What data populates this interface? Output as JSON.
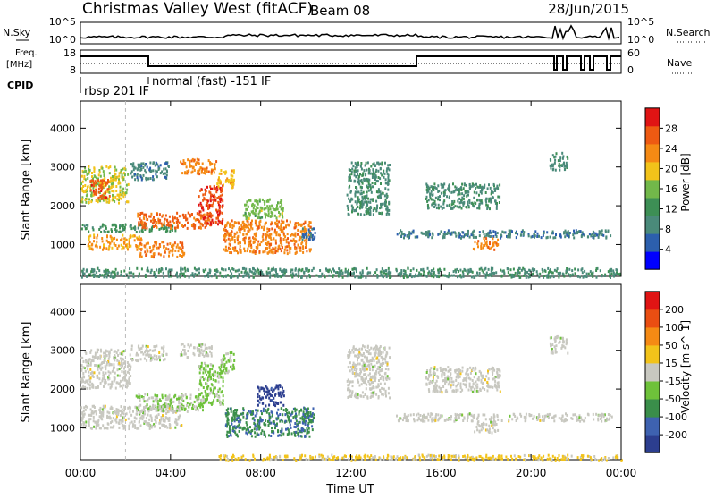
{
  "header": {
    "station": "Christmas Valley West (fitACF)",
    "beam": "Beam 08",
    "date": "28/Jun/2015"
  },
  "top_panels": {
    "nsky_label": "N.Sky",
    "nsky_left_ticks": [
      "10^5",
      "10^0"
    ],
    "nsky_right_ticks": [
      "10^5",
      "10^0"
    ],
    "nsearch_label": "N.Search",
    "freq_label_line1": "Freq.",
    "freq_label_line2": "[MHz]",
    "freq_left_ticks": [
      "18",
      "8"
    ],
    "freq_right_ticks": [
      "60",
      "0"
    ],
    "nave_label": "Nave",
    "cpid_label": "CPID",
    "cpid_annotation_1": "normal (fast) -151 IF",
    "cpid_annotation_2": "rbsp 201 IF"
  },
  "colors": {
    "power": [
      "#0000ff",
      "#2c5fad",
      "#4a8a7a",
      "#3d8f55",
      "#72b84a",
      "#f2c31a",
      "#f58a14",
      "#ee5a12",
      "#e01414"
    ],
    "velocity": [
      "#2c3e8f",
      "#3e62b0",
      "#3a8e4a",
      "#6ec23a",
      "#c8c8c0",
      "#f2c31a",
      "#f58a14",
      "#ea4e12",
      "#e01414"
    ]
  },
  "chart_data": [
    {
      "type": "heatmap",
      "title": "",
      "ylabel": "Slant Range [km]",
      "xlabel": "Time UT",
      "x_ticks": [
        "00:00",
        "04:00",
        "08:00",
        "12:00",
        "16:00",
        "20:00",
        "00:00"
      ],
      "x_range_hours": [
        0,
        24
      ],
      "y_ticks": [
        "1000",
        "2000",
        "3000",
        "4000"
      ],
      "y_range_km": [
        180,
        4700
      ],
      "colorbar_label": "Power [dB]",
      "colorbar_ticks": [
        "4",
        "8",
        "12",
        "16",
        "20",
        "24",
        "28"
      ],
      "colorbar_range": [
        0,
        32
      ],
      "regions": [
        {
          "t0": 0.0,
          "t1": 2.1,
          "r0": 2100,
          "r1": 3050,
          "value": 18
        },
        {
          "t0": 0.4,
          "t1": 1.3,
          "r0": 2200,
          "r1": 2700,
          "value": 27
        },
        {
          "t0": 0.0,
          "t1": 4.2,
          "r0": 1350,
          "r1": 1550,
          "value": 12
        },
        {
          "t0": 0.3,
          "t1": 2.7,
          "r0": 900,
          "r1": 1280,
          "value": 22
        },
        {
          "t0": 2.6,
          "t1": 4.6,
          "r0": 700,
          "r1": 1100,
          "value": 24
        },
        {
          "t0": 2.5,
          "t1": 5.8,
          "r0": 1450,
          "r1": 1850,
          "value": 26
        },
        {
          "t0": 5.2,
          "t1": 6.3,
          "r0": 1550,
          "r1": 2550,
          "value": 28
        },
        {
          "t0": 6.0,
          "t1": 6.8,
          "r0": 2500,
          "r1": 2950,
          "value": 20
        },
        {
          "t0": 2.2,
          "t1": 3.9,
          "r0": 2700,
          "r1": 3150,
          "value": 8
        },
        {
          "t0": 4.4,
          "t1": 6.0,
          "r0": 2850,
          "r1": 3250,
          "value": 24
        },
        {
          "t0": 6.3,
          "t1": 10.2,
          "r0": 800,
          "r1": 1650,
          "value": 24
        },
        {
          "t0": 7.2,
          "t1": 9.0,
          "r0": 1700,
          "r1": 2200,
          "value": 16
        },
        {
          "t0": 9.8,
          "t1": 10.4,
          "r0": 1150,
          "r1": 1450,
          "value": 6
        },
        {
          "t0": 11.8,
          "t1": 13.7,
          "r0": 1800,
          "r1": 3150,
          "value": 10
        },
        {
          "t0": 15.3,
          "t1": 18.6,
          "r0": 1950,
          "r1": 2600,
          "value": 10
        },
        {
          "t0": 14.0,
          "t1": 23.6,
          "r0": 1200,
          "r1": 1400,
          "value": 8
        },
        {
          "t0": 17.4,
          "t1": 18.5,
          "r0": 900,
          "r1": 1200,
          "value": 24
        },
        {
          "t0": 20.8,
          "t1": 21.6,
          "r0": 2950,
          "r1": 3400,
          "value": 10
        },
        {
          "t0": 0.0,
          "t1": 24.0,
          "r0": 180,
          "r1": 420,
          "value": 10
        }
      ]
    },
    {
      "type": "heatmap",
      "title": "",
      "ylabel": "Slant Range [km]",
      "xlabel": "Time UT",
      "x_ticks": [
        "00:00",
        "04:00",
        "08:00",
        "12:00",
        "16:00",
        "20:00",
        "00:00"
      ],
      "x_range_hours": [
        0,
        24
      ],
      "y_ticks": [
        "1000",
        "2000",
        "3000",
        "4000"
      ],
      "y_range_km": [
        180,
        4700
      ],
      "colorbar_label": "Velocity [m s^-1]",
      "colorbar_ticks": [
        "-200",
        "-100",
        "-50",
        "-15",
        "15",
        "50",
        "100",
        "200"
      ],
      "colorbar_range": [
        -250,
        250
      ],
      "regions": [
        {
          "t0": 0.0,
          "t1": 2.2,
          "r0": 2050,
          "r1": 3050,
          "value": 0
        },
        {
          "t0": 0.0,
          "t1": 4.5,
          "r0": 1000,
          "r1": 1600,
          "value": 0
        },
        {
          "t0": 2.4,
          "t1": 5.6,
          "r0": 1450,
          "r1": 1900,
          "value": -30
        },
        {
          "t0": 5.2,
          "t1": 6.3,
          "r0": 1600,
          "r1": 2700,
          "value": -40
        },
        {
          "t0": 6.2,
          "t1": 6.8,
          "r0": 2450,
          "r1": 3000,
          "value": -40
        },
        {
          "t0": 2.2,
          "t1": 3.8,
          "r0": 2750,
          "r1": 3150,
          "value": 0
        },
        {
          "t0": 4.4,
          "t1": 5.8,
          "r0": 2850,
          "r1": 3200,
          "value": 0
        },
        {
          "t0": 6.4,
          "t1": 10.3,
          "r0": 800,
          "r1": 1550,
          "value": -130
        },
        {
          "t0": 7.8,
          "t1": 9.0,
          "r0": 1600,
          "r1": 2150,
          "value": -220
        },
        {
          "t0": 9.8,
          "t1": 10.4,
          "r0": 1150,
          "r1": 1400,
          "value": -120
        },
        {
          "t0": 11.8,
          "t1": 13.7,
          "r0": 1800,
          "r1": 3150,
          "value": 0
        },
        {
          "t0": 15.3,
          "t1": 18.6,
          "r0": 1950,
          "r1": 2600,
          "value": 0
        },
        {
          "t0": 14.0,
          "t1": 23.6,
          "r0": 1200,
          "r1": 1400,
          "value": 0
        },
        {
          "t0": 17.4,
          "t1": 18.5,
          "r0": 900,
          "r1": 1200,
          "value": 0
        },
        {
          "t0": 20.8,
          "t1": 21.6,
          "r0": 2950,
          "r1": 3400,
          "value": 0
        },
        {
          "t0": 6.0,
          "t1": 24.0,
          "r0": 180,
          "r1": 330,
          "value": 40
        }
      ]
    }
  ]
}
